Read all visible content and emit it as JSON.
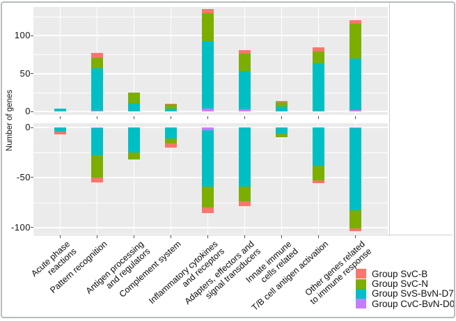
{
  "figure": {
    "y_axis_title": "Number of genes"
  },
  "chart_data": {
    "type": "bar",
    "stacked": true,
    "orientation": "vertical",
    "grid": "on",
    "legend_position": "bottom-right",
    "panels": [
      {
        "id": "up-regulated",
        "y_ticks": [
          100,
          50,
          0
        ],
        "y_minor_ticks": [
          125,
          75,
          25
        ],
        "ylim": [
          0,
          137
        ]
      },
      {
        "id": "down-regulated",
        "y_ticks": [
          0,
          -50,
          -100
        ],
        "y_minor_ticks": [
          -25,
          -75
        ],
        "ylim": [
          -106,
          0
        ]
      }
    ],
    "categories": [
      "Acute phase reactions",
      "Pattern recognition",
      "Antigen processing and regulators",
      "Complement system",
      "Inflammatory cytokines and receptors",
      "Adapters, effectors and signal transducers",
      "Innate immune cells related",
      "T/B cell antigen activation",
      "Other genes related to immune response"
    ],
    "category_label_lines": [
      [
        "Acute phase",
        "reactions"
      ],
      [
        "Pattern recognition"
      ],
      [
        "Antigen processing",
        "and regulators"
      ],
      [
        "Complement system"
      ],
      [
        "Inflammatory cytokines",
        "and receptors"
      ],
      [
        "Adapters, effectors and",
        "signal transducers"
      ],
      [
        "Innate immune",
        "cells related"
      ],
      [
        "T/B cell antigen activation"
      ],
      [
        "Other genes related",
        "to immune response"
      ]
    ],
    "series": [
      {
        "name": "Group SvC-B",
        "color": "#F8766D",
        "up": [
          0,
          6,
          0,
          1,
          6,
          5,
          2,
          5,
          4
        ],
        "down": [
          -3,
          -5,
          0,
          -4,
          -6,
          -5,
          0,
          -3,
          -3
        ]
      },
      {
        "name": "Group SvC-N",
        "color": "#7CAE00",
        "up": [
          0,
          14,
          14,
          5,
          36,
          23,
          6,
          16,
          46
        ],
        "down": [
          0,
          -22,
          -7,
          -5,
          -21,
          -15,
          -4,
          -15,
          -18
        ]
      },
      {
        "name": "Group SvS-BvN-D7",
        "color": "#00BFC4",
        "up": [
          4,
          56,
          11,
          4,
          89,
          50,
          6,
          63,
          68
        ],
        "down": [
          -4,
          -27,
          -25,
          -11,
          -56,
          -59,
          -6,
          -38,
          -82
        ]
      },
      {
        "name": "Group CvC-BvN-D0",
        "color": "#C77CFF",
        "up": [
          0,
          1,
          0,
          0,
          4,
          3,
          0,
          0,
          2
        ],
        "down": [
          0,
          -1,
          0,
          0,
          -3,
          0,
          0,
          0,
          -1
        ]
      }
    ],
    "stack_order_from_zero": [
      "Group CvC-BvN-D0",
      "Group SvS-BvN-D7",
      "Group SvC-N",
      "Group SvC-B"
    ]
  },
  "colors": {
    "panel_background": "#ebebeb",
    "gridline": "#ffffff",
    "axis_text": "#111111",
    "frame_border": "#b7bcbe"
  }
}
